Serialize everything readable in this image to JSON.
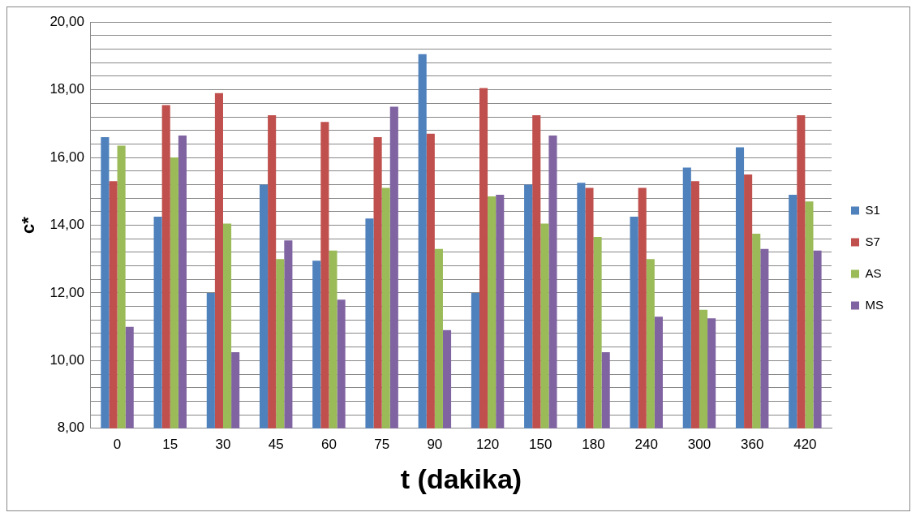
{
  "chart_data": {
    "type": "bar",
    "xlabel": "t (dakika)",
    "ylabel": "c*",
    "categories": [
      "0",
      "15",
      "30",
      "45",
      "60",
      "75",
      "90",
      "120",
      "150",
      "180",
      "240",
      "300",
      "360",
      "420"
    ],
    "series": [
      {
        "name": "S1",
        "color": "#4f81bd",
        "values": [
          16.6,
          14.25,
          12.0,
          15.2,
          12.95,
          14.2,
          19.05,
          12.0,
          15.2,
          15.25,
          14.25,
          15.7,
          16.3,
          14.9
        ]
      },
      {
        "name": "S7",
        "color": "#c0504d",
        "values": [
          15.3,
          17.55,
          17.9,
          17.25,
          17.05,
          16.6,
          16.7,
          18.05,
          17.25,
          15.1,
          15.1,
          15.3,
          15.5,
          17.25
        ]
      },
      {
        "name": "AS",
        "color": "#9bbb59",
        "values": [
          16.35,
          16.0,
          14.05,
          13.0,
          13.25,
          15.1,
          13.3,
          14.85,
          14.05,
          13.65,
          13.0,
          11.5,
          13.75,
          14.7
        ]
      },
      {
        "name": "MS",
        "color": "#8064a2",
        "values": [
          11.0,
          16.65,
          10.25,
          13.55,
          11.8,
          17.5,
          10.9,
          14.9,
          16.65,
          10.25,
          11.3,
          11.25,
          13.3,
          13.25
        ]
      }
    ],
    "ylim": [
      8,
      20
    ],
    "yticks": [
      {
        "value": 8,
        "label": "8,00"
      },
      {
        "value": 8.4,
        "label": null
      },
      {
        "value": 8.8,
        "label": null
      },
      {
        "value": 9.2,
        "label": null
      },
      {
        "value": 9.6,
        "label": null
      },
      {
        "value": 10,
        "label": "10,00"
      },
      {
        "value": 10.4,
        "label": null
      },
      {
        "value": 10.8,
        "label": null
      },
      {
        "value": 11.2,
        "label": null
      },
      {
        "value": 11.6,
        "label": null
      },
      {
        "value": 12,
        "label": "12,00"
      },
      {
        "value": 12.4,
        "label": null
      },
      {
        "value": 12.8,
        "label": null
      },
      {
        "value": 13.2,
        "label": null
      },
      {
        "value": 13.6,
        "label": null
      },
      {
        "value": 14,
        "label": "14,00"
      },
      {
        "value": 14.4,
        "label": null
      },
      {
        "value": 14.8,
        "label": null
      },
      {
        "value": 15.2,
        "label": null
      },
      {
        "value": 15.6,
        "label": null
      },
      {
        "value": 16,
        "label": "16,00"
      },
      {
        "value": 16.4,
        "label": null
      },
      {
        "value": 16.8,
        "label": null
      },
      {
        "value": 17.2,
        "label": null
      },
      {
        "value": 17.6,
        "label": null
      },
      {
        "value": 18,
        "label": "18,00"
      },
      {
        "value": 18.4,
        "label": null
      },
      {
        "value": 18.8,
        "label": null
      },
      {
        "value": 19.2,
        "label": null
      },
      {
        "value": 19.6,
        "label": null
      },
      {
        "value": 20,
        "label": "20,00"
      }
    ],
    "grid": "y",
    "legend": "right"
  }
}
